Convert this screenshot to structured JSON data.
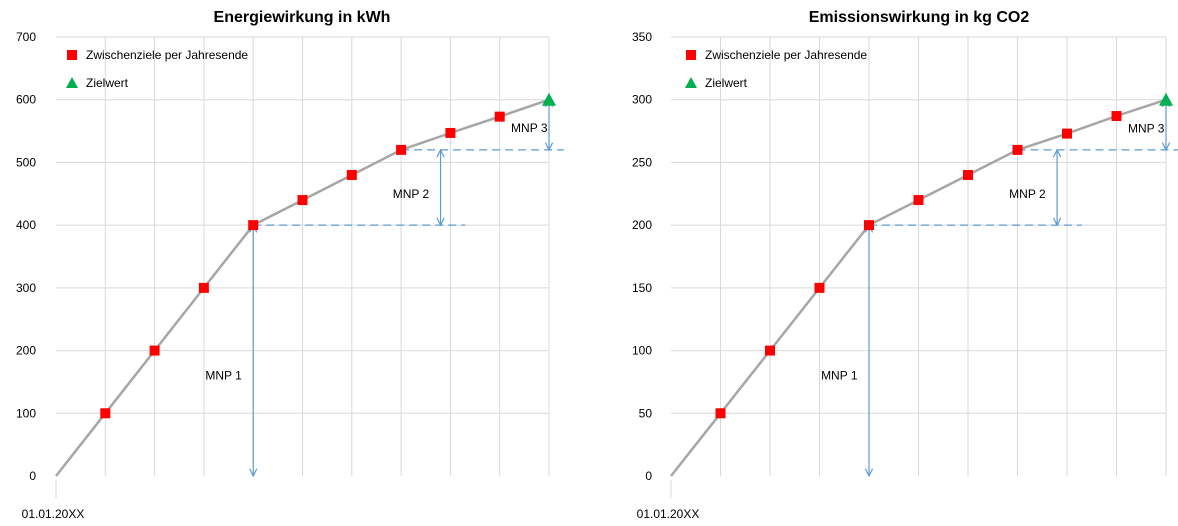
{
  "chart_data": [
    {
      "type": "line",
      "title": "Energiewirkung in kWh",
      "xlabel": "",
      "ylabel": "",
      "ylim": [
        0,
        700
      ],
      "yticks": [
        0,
        100,
        200,
        300,
        400,
        500,
        600,
        700
      ],
      "x_tick_labels": [
        "01.01.20XX"
      ],
      "grid": true,
      "legend_position": "top-left",
      "legend": [
        "Zwischenziele per Jahresende",
        "Zielwert"
      ],
      "x": [
        0,
        1,
        2,
        3,
        4,
        5,
        6,
        7,
        8,
        9,
        10
      ],
      "series": [
        {
          "marker": "line",
          "values": [
            0,
            100,
            200,
            300,
            400,
            440,
            480,
            520,
            547,
            573,
            600
          ]
        },
        {
          "name": "Zwischenziele per Jahresende",
          "marker": "square",
          "x": [
            1,
            2,
            3,
            4,
            5,
            6,
            7,
            8,
            9
          ],
          "values": [
            100,
            200,
            300,
            400,
            440,
            480,
            520,
            547,
            573
          ]
        },
        {
          "name": "Zielwert",
          "marker": "triangle",
          "x": [
            10
          ],
          "values": [
            600
          ]
        }
      ],
      "annotations": [
        {
          "text": "MNP 1",
          "x": 4,
          "from": 0,
          "to": 400,
          "text_x": 3.4,
          "text_y": 160
        },
        {
          "text": "MNP 2",
          "x": 7.8,
          "from": 400,
          "to": 520,
          "text_x": 7.2,
          "text_y": 450
        },
        {
          "text": "MNP 3",
          "x": 10,
          "from": 520,
          "to": 600,
          "text_x": 9.6,
          "text_y": 555
        }
      ],
      "dashed_lines": [
        {
          "y": 400,
          "x_from": 4,
          "x_to": 8.3
        },
        {
          "y": 520,
          "x_from": 7,
          "x_to": 10.3
        }
      ],
      "colors": {
        "line": "#a6a6a6",
        "square": "#ff0000",
        "triangle": "#00b050",
        "arrow": "#5b9bd5"
      }
    },
    {
      "type": "line",
      "title": "Emissionswirkung in kg CO2",
      "xlabel": "",
      "ylabel": "",
      "ylim": [
        0,
        350
      ],
      "yticks": [
        0,
        50,
        100,
        150,
        200,
        250,
        300,
        350
      ],
      "x_tick_labels": [
        "01.01.20XX"
      ],
      "grid": true,
      "legend_position": "top-left",
      "legend": [
        "Zwischenziele per Jahresende",
        "Zielwert"
      ],
      "x": [
        0,
        1,
        2,
        3,
        4,
        5,
        6,
        7,
        8,
        9,
        10
      ],
      "series": [
        {
          "marker": "line",
          "values": [
            0,
            50,
            100,
            150,
            200,
            220,
            240,
            260,
            273,
            287,
            300
          ]
        },
        {
          "name": "Zwischenziele per Jahresende",
          "marker": "square",
          "x": [
            1,
            2,
            3,
            4,
            5,
            6,
            7,
            8,
            9
          ],
          "values": [
            50,
            100,
            150,
            200,
            220,
            240,
            260,
            273,
            287
          ]
        },
        {
          "name": "Zielwert",
          "marker": "triangle",
          "x": [
            10
          ],
          "values": [
            300
          ]
        }
      ],
      "annotations": [
        {
          "text": "MNP 1",
          "x": 4,
          "from": 0,
          "to": 200,
          "text_x": 3.4,
          "text_y": 80
        },
        {
          "text": "MNP 2",
          "x": 7.8,
          "from": 200,
          "to": 260,
          "text_x": 7.2,
          "text_y": 225
        },
        {
          "text": "MNP 3",
          "x": 10,
          "from": 260,
          "to": 300,
          "text_x": 9.6,
          "text_y": 277
        }
      ],
      "dashed_lines": [
        {
          "y": 200,
          "x_from": 4,
          "x_to": 8.3
        },
        {
          "y": 260,
          "x_from": 7,
          "x_to": 10.3
        }
      ],
      "colors": {
        "line": "#a6a6a6",
        "square": "#ff0000",
        "triangle": "#00b050",
        "arrow": "#5b9bd5"
      }
    }
  ]
}
